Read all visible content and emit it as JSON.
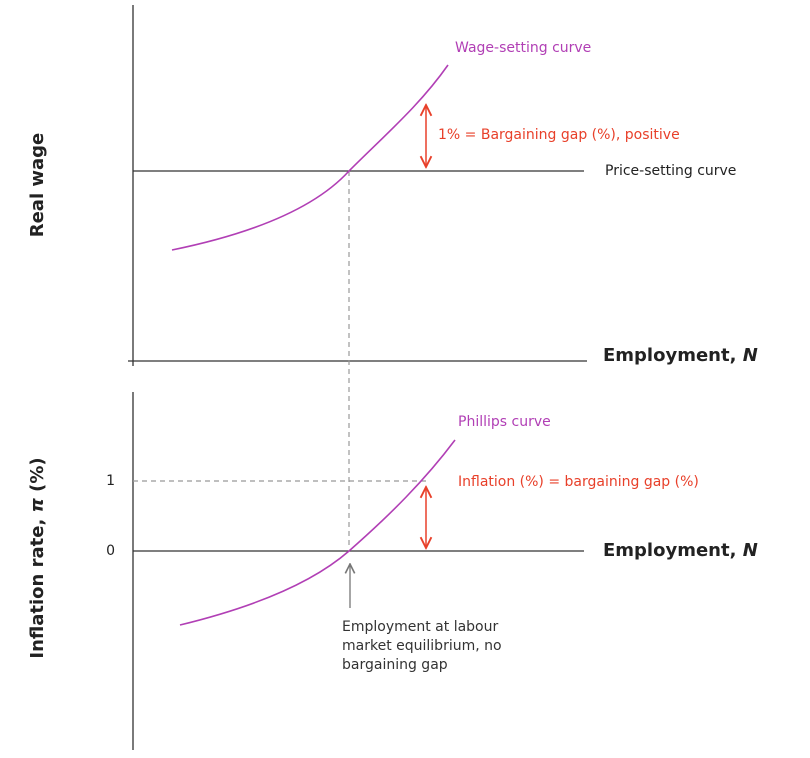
{
  "top_panel": {
    "y_label": "Real wage",
    "x_label": {
      "text": "Employment, ",
      "var": "N"
    },
    "wage_curve_label": "Wage-setting curve",
    "price_curve_label": "Price-setting curve",
    "gap_label": "1% = Bargaining gap (%), positive"
  },
  "bottom_panel": {
    "y_label": {
      "text": "Inflation rate, ",
      "var": "π",
      "unit": " (%)"
    },
    "x_label": {
      "text": "Employment, ",
      "var": "N"
    },
    "y_ticks": [
      1,
      0
    ],
    "curve_label": "Phillips curve",
    "gap_label": "Inflation (%) = bargaining gap (%)",
    "annotation": [
      "Employment at labour",
      "market equilibrium, no",
      "bargaining gap"
    ]
  }
}
